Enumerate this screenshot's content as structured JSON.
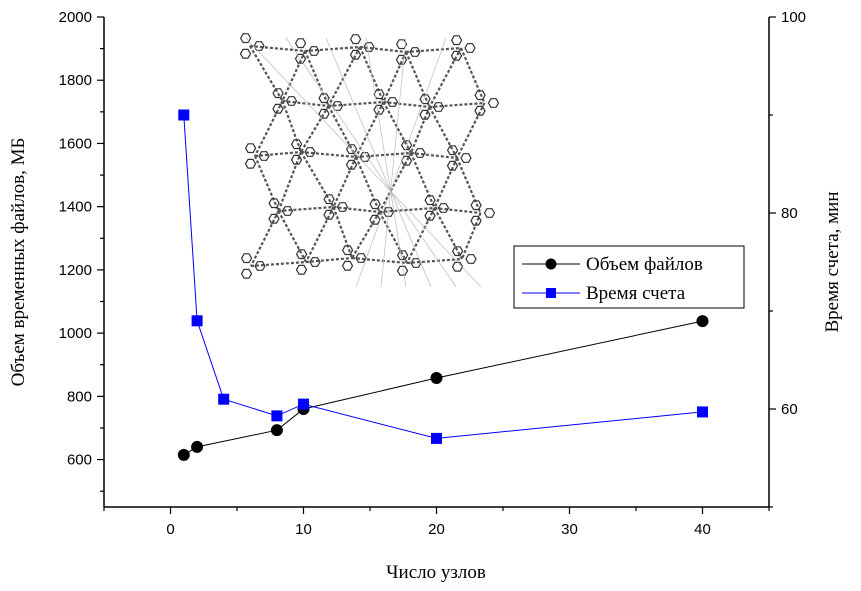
{
  "chart_data": {
    "type": "line",
    "title": "",
    "xlabel": "Число узлов",
    "ylabel_left": "Объем временных файлов, МБ",
    "ylabel_right": "Время счета, мин",
    "xlim": [
      -5,
      45
    ],
    "ylim_left": [
      450,
      2000
    ],
    "ylim_right": [
      50,
      100
    ],
    "x_ticks": [
      0,
      10,
      20,
      30,
      40
    ],
    "y_left_ticks": [
      600,
      800,
      1000,
      1200,
      1400,
      1600,
      1800,
      2000
    ],
    "y_right_ticks": [
      60,
      80,
      100
    ],
    "grid": false,
    "legend_position": "right-middle",
    "series": [
      {
        "name": "Объем файлов",
        "axis": "left",
        "marker": "circle",
        "color": "#000000",
        "x": [
          1,
          2,
          8,
          10,
          20,
          40
        ],
        "y": [
          615,
          640,
          693,
          760,
          858,
          1038
        ]
      },
      {
        "name": "Время счета",
        "axis": "right",
        "marker": "square",
        "color": "#0000ff",
        "x": [
          1,
          2,
          4,
          8,
          10,
          20,
          40
        ],
        "y": [
          90.0,
          69.0,
          61.0,
          59.3,
          60.5,
          57.0,
          59.7
        ]
      }
    ]
  }
}
